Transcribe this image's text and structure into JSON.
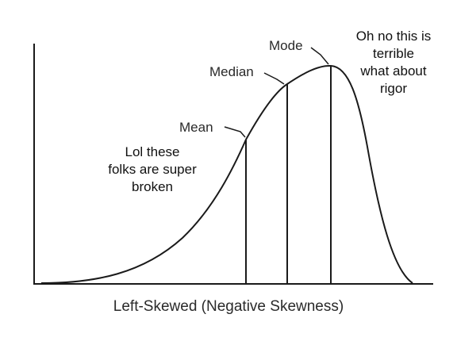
{
  "diagram": {
    "caption": "Left-Skewed (Negative Skewness)",
    "markers": {
      "mean": "Mean",
      "median": "Median",
      "mode": "Mode"
    },
    "annotations": {
      "left": "Lol these\nfolks are super\nbroken",
      "right": "Oh no this is\nterrible\nwhat about\nrigor"
    },
    "colors": {
      "stroke": "#1a1a1a",
      "background": "#ffffff"
    }
  }
}
